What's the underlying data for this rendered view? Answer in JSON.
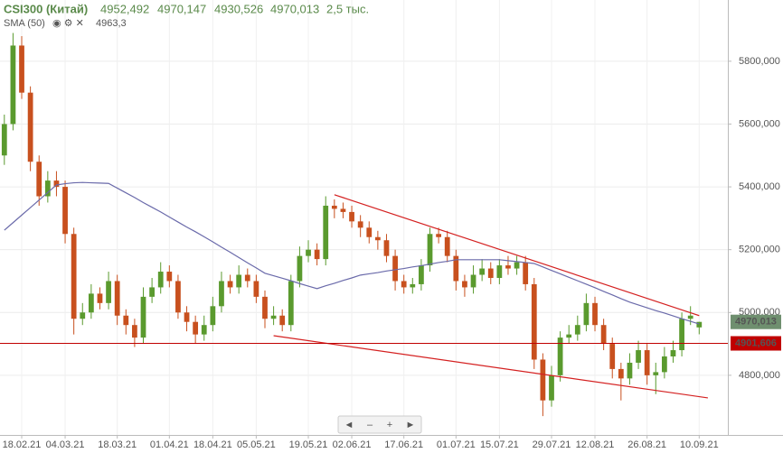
{
  "header": {
    "title": "CSI300 (Китай)",
    "open": "4952,492",
    "high": "4970,147",
    "low": "4930,526",
    "close": "4970,013",
    "volume": "2,5 тыс.",
    "indicator": "SMA (50)",
    "indicator_value": "4963,3"
  },
  "chart_data": {
    "type": "candlestick",
    "categories": [
      null,
      null,
      "18.02.21",
      null,
      null,
      null,
      null,
      "04.03.21",
      null,
      null,
      null,
      null,
      null,
      "18.03.21",
      null,
      null,
      null,
      null,
      null,
      "01.04.21",
      null,
      null,
      null,
      null,
      "18.04.21",
      null,
      null,
      null,
      null,
      "05.05.21",
      null,
      null,
      null,
      null,
      null,
      "19.05.21",
      null,
      null,
      null,
      null,
      "02.06.21",
      null,
      null,
      null,
      null,
      null,
      "17.06.21",
      null,
      null,
      null,
      null,
      null,
      "01.07.21",
      null,
      null,
      null,
      null,
      "15.07.21",
      null,
      null,
      null,
      null,
      null,
      "29.07.21",
      null,
      null,
      null,
      null,
      "12.08.21",
      null,
      null,
      null,
      null,
      null,
      "26.08.21",
      null,
      null,
      null,
      null,
      null,
      "10.09.21"
    ],
    "open": [
      5500,
      5600,
      5850,
      5700,
      5480,
      5370,
      5420,
      5400,
      5250,
      4980,
      5000,
      5060,
      5030,
      5100,
      4990,
      4960,
      4920,
      5050,
      5080,
      5130,
      5100,
      5000,
      4970,
      4930,
      4960,
      5020,
      5100,
      5080,
      5120,
      5100,
      5050,
      4980,
      4990,
      4960,
      5100,
      5180,
      5200,
      5170,
      5340,
      5330,
      5320,
      5290,
      5270,
      5240,
      5230,
      5180,
      5100,
      5080,
      5090,
      5150,
      5250,
      5240,
      5180,
      5100,
      5080,
      5120,
      5140,
      5110,
      5150,
      5140,
      5160,
      5090,
      4850,
      4720,
      4800,
      4920,
      4930,
      4960,
      5030,
      4960,
      4900,
      4820,
      4790,
      4840,
      4880,
      4800,
      4810,
      4860,
      4880,
      4980,
      4952.492
    ],
    "high": [
      5630,
      5890,
      5880,
      5720,
      5500,
      5450,
      5450,
      5420,
      5270,
      5030,
      5090,
      5080,
      5130,
      5120,
      5010,
      4980,
      5080,
      5110,
      5160,
      5150,
      5120,
      5020,
      4990,
      4990,
      5050,
      5130,
      5120,
      5150,
      5140,
      5120,
      5070,
      5020,
      5010,
      5120,
      5210,
      5230,
      5220,
      5370,
      5360,
      5350,
      5340,
      5310,
      5290,
      5260,
      5250,
      5200,
      5120,
      5110,
      5170,
      5270,
      5270,
      5260,
      5200,
      5120,
      5150,
      5170,
      5160,
      5170,
      5180,
      5180,
      5180,
      5110,
      4870,
      4830,
      4940,
      4960,
      4990,
      5060,
      5050,
      4980,
      4920,
      4840,
      4870,
      4910,
      4900,
      4840,
      4890,
      4910,
      5000,
      5020,
      4970.147
    ],
    "low": [
      5470,
      5580,
      5680,
      5450,
      5340,
      5350,
      5370,
      5220,
      4930,
      4960,
      4980,
      5010,
      5010,
      4960,
      4930,
      4890,
      4900,
      5030,
      5060,
      5080,
      4980,
      4940,
      4900,
      4910,
      4940,
      5000,
      5060,
      5060,
      5080,
      5030,
      4950,
      4960,
      4940,
      4940,
      5080,
      5160,
      5150,
      5150,
      5300,
      5300,
      5270,
      5240,
      5220,
      5200,
      5160,
      5070,
      5060,
      5060,
      5070,
      5130,
      5220,
      5160,
      5070,
      5050,
      5060,
      5100,
      5090,
      5090,
      5120,
      5120,
      5070,
      4820,
      4670,
      4700,
      4780,
      4900,
      4910,
      4940,
      4940,
      4880,
      4790,
      4720,
      4770,
      4820,
      4770,
      4740,
      4790,
      4840,
      4860,
      4960,
      4930.526
    ],
    "close": [
      5600,
      5850,
      5700,
      5480,
      5370,
      5420,
      5400,
      5250,
      4980,
      5000,
      5060,
      5030,
      5100,
      4990,
      4960,
      4920,
      5050,
      5080,
      5130,
      5100,
      5000,
      4970,
      4930,
      4960,
      5020,
      5100,
      5080,
      5120,
      5100,
      5050,
      4980,
      4990,
      4960,
      5100,
      5180,
      5200,
      5170,
      5340,
      5330,
      5320,
      5290,
      5270,
      5240,
      5230,
      5180,
      5100,
      5080,
      5090,
      5150,
      5250,
      5240,
      5180,
      5100,
      5080,
      5120,
      5140,
      5110,
      5150,
      5140,
      5160,
      5090,
      4850,
      4720,
      4800,
      4920,
      4930,
      4960,
      5030,
      4960,
      4900,
      4820,
      4790,
      4840,
      4880,
      4800,
      4810,
      4860,
      4880,
      4980,
      4990,
      4970.013
    ],
    "up_color": "#5a9a2e",
    "down_color": "#c8501e",
    "series": [
      {
        "name": "SMA (50)",
        "color": "#6a6aaa",
        "values": [
          5262,
          5286,
          5310,
          5334,
          5358,
          5382,
          5406,
          5410,
          5413,
          5414,
          5413,
          5412,
          5411,
          5396,
          5381,
          5366,
          5350,
          5335,
          5320,
          5304,
          5288,
          5272,
          5257,
          5241,
          5225,
          5208,
          5192,
          5175,
          5158,
          5142,
          5125,
          5117,
          5109,
          5101,
          5092,
          5084,
          5076,
          5085,
          5093,
          5102,
          5110,
          5119,
          5123,
          5127,
          5132,
          5136,
          5140,
          5145,
          5149,
          5154,
          5159,
          5163,
          5168,
          5168,
          5168,
          5168,
          5168,
          5168,
          5165,
          5162,
          5159,
          5156,
          5145,
          5134,
          5123,
          5112,
          5101,
          5090,
          5079,
          5067,
          5056,
          5044,
          5033,
          5024,
          5015,
          5006,
          4998,
          4989,
          4980,
          4972,
          4963.3
        ]
      }
    ],
    "trendlines": [
      {
        "color": "#d42020",
        "x": [
          38,
          80
        ],
        "y": [
          5375,
          4990
        ]
      },
      {
        "color": "#d42020",
        "x": [
          31,
          81
        ],
        "y": [
          4926,
          4728
        ]
      }
    ],
    "hlines": [
      {
        "value": 4901.606,
        "label": "4901,606",
        "color": "#c00000"
      }
    ],
    "last_price": {
      "value": 4970.013,
      "label": "4970,013",
      "color": "#6f8f6f"
    },
    "xlim": [
      -0.5,
      83.3
    ],
    "ylim": [
      4610,
      5995
    ],
    "yticks": [
      {
        "value": 4800,
        "label": "4800,000"
      },
      {
        "value": 5000,
        "label": "5000,000"
      },
      {
        "value": 5200,
        "label": "5200,000"
      },
      {
        "value": 5400,
        "label": "5400,000"
      },
      {
        "value": 5600,
        "label": "5600,000"
      },
      {
        "value": 5800,
        "label": "5800,000"
      }
    ],
    "grid": true
  }
}
